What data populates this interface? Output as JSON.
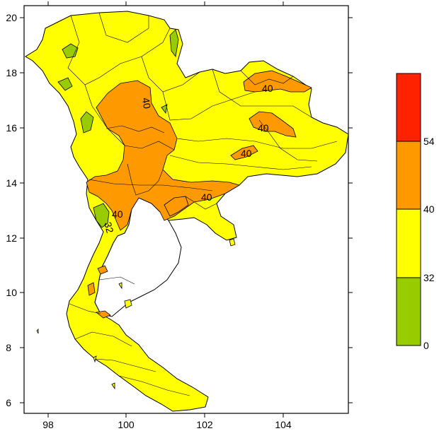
{
  "map": {
    "x_ticks": [
      "98",
      "100",
      "102",
      "104"
    ],
    "y_ticks": [
      "20",
      "18",
      "16",
      "14",
      "12",
      "10",
      "8",
      "6"
    ],
    "contour_labels": [
      "40",
      "40",
      "40",
      "40",
      "40",
      "40",
      "32"
    ],
    "colors": {
      "land_default": "#ffff00",
      "band_0_32": "#99cc00",
      "band_32_40": "#ffff00",
      "band_40_54": "#ff9900",
      "band_54_plus": "#ff2200",
      "border": "#000000"
    }
  },
  "legend": {
    "labels": [
      "54",
      "40",
      "32",
      "0"
    ],
    "bands": [
      {
        "color": "#ff2200",
        "range": "above 54"
      },
      {
        "color": "#ff9900",
        "range": "40-54"
      },
      {
        "color": "#ffff00",
        "range": "32-40"
      },
      {
        "color": "#99cc00",
        "range": "0-32"
      }
    ]
  }
}
